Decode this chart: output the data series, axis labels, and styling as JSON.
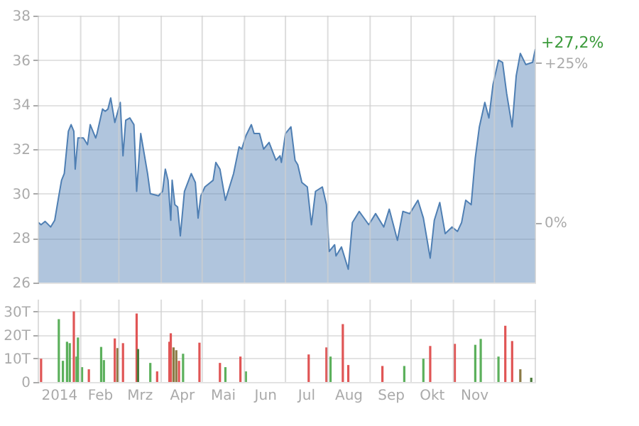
{
  "chart_data": [
    {
      "type": "area",
      "x": [
        "2014-01-01",
        "2014-01-03",
        "2014-01-06",
        "2014-01-10",
        "2014-01-13",
        "2014-01-16",
        "2014-01-18",
        "2014-01-20",
        "2014-01-23",
        "2014-01-25",
        "2014-01-27",
        "2014-01-28",
        "2014-01-30",
        "2014-02-03",
        "2014-02-06",
        "2014-02-08",
        "2014-02-12",
        "2014-02-13",
        "2014-02-17",
        "2014-02-19",
        "2014-02-21",
        "2014-02-23",
        "2014-02-26",
        "2014-03-02",
        "2014-03-04",
        "2014-03-06",
        "2014-03-09",
        "2014-03-12",
        "2014-03-14",
        "2014-03-17",
        "2014-03-22",
        "2014-03-24",
        "2014-03-30",
        "2014-04-02",
        "2014-04-04",
        "2014-04-06",
        "2014-04-08",
        "2014-04-09",
        "2014-04-11",
        "2014-04-13",
        "2014-04-15",
        "2014-04-18",
        "2014-04-23",
        "2014-04-26",
        "2014-04-28",
        "2014-04-30",
        "2014-05-03",
        "2014-05-09",
        "2014-05-11",
        "2014-05-14",
        "2014-05-18",
        "2014-05-21",
        "2014-05-24",
        "2014-05-28",
        "2014-05-30",
        "2014-06-02",
        "2014-06-06",
        "2014-06-08",
        "2014-06-12",
        "2014-06-15",
        "2014-06-19",
        "2014-06-24",
        "2014-06-27",
        "2014-06-28",
        "2014-07-01",
        "2014-07-05",
        "2014-07-08",
        "2014-07-10",
        "2014-07-13",
        "2014-07-17",
        "2014-07-20",
        "2014-07-23",
        "2014-07-28",
        "2014-07-31",
        "2014-08-02",
        "2014-08-06",
        "2014-08-07",
        "2014-08-11",
        "2014-08-16",
        "2014-08-19",
        "2014-08-24",
        "2014-08-31",
        "2014-09-05",
        "2014-09-11",
        "2014-09-15",
        "2014-09-21",
        "2014-09-25",
        "2014-09-30",
        "2014-10-06",
        "2014-10-10",
        "2014-10-15",
        "2014-10-18",
        "2014-10-22",
        "2014-10-26",
        "2014-10-31",
        "2014-11-04",
        "2014-11-07",
        "2014-11-10",
        "2014-11-14",
        "2014-11-17",
        "2014-11-20",
        "2014-11-24",
        "2014-11-27",
        "2014-11-30",
        "2014-12-04",
        "2014-12-07",
        "2014-12-10",
        "2014-12-14",
        "2014-12-17",
        "2014-12-20",
        "2014-12-24",
        "2014-12-29",
        "2014-12-31"
      ],
      "series": [
        {
          "color": "#4f7fb3",
          "values": [
            28.7,
            28.6,
            28.75,
            28.5,
            28.8,
            29.9,
            30.6,
            30.9,
            32.8,
            33.1,
            32.8,
            31.1,
            32.5,
            32.5,
            32.2,
            33.1,
            32.5,
            32.7,
            33.8,
            33.7,
            33.8,
            34.3,
            33.2,
            34.1,
            31.7,
            33.3,
            33.4,
            33.1,
            30.1,
            32.7,
            30.9,
            30.0,
            29.9,
            30.1,
            31.1,
            30.6,
            28.8,
            30.6,
            29.5,
            29.4,
            28.1,
            30.1,
            30.9,
            30.5,
            28.9,
            29.9,
            30.3,
            30.6,
            31.4,
            31.1,
            29.7,
            30.3,
            30.9,
            32.1,
            32.0,
            32.6,
            33.1,
            32.7,
            32.7,
            32.0,
            32.3,
            31.5,
            31.7,
            31.4,
            32.7,
            33.0,
            31.5,
            31.3,
            30.5,
            30.3,
            28.6,
            30.1,
            30.3,
            29.5,
            27.4,
            27.7,
            27.2,
            27.6,
            26.6,
            28.7,
            29.2,
            28.6,
            29.1,
            28.5,
            29.3,
            27.9,
            29.2,
            29.1,
            29.7,
            28.9,
            27.1,
            28.8,
            29.6,
            28.2,
            28.5,
            28.3,
            28.7,
            29.7,
            29.5,
            31.6,
            33.0,
            34.1,
            33.4,
            34.9,
            36.0,
            35.9,
            34.5,
            33.0,
            35.3,
            36.3,
            35.8,
            35.9,
            36.5
          ]
        }
      ],
      "xlim": [
        "2014-01-01",
        "2014-12-31"
      ],
      "xticks": [
        {
          "value": "2014-01-01",
          "label": null
        },
        {
          "value": "2014-02-01",
          "label": null
        },
        {
          "value": "2014-03-01",
          "label": null
        },
        {
          "value": "2014-04-01",
          "label": null
        },
        {
          "value": "2014-05-01",
          "label": null
        },
        {
          "value": "2014-06-01",
          "label": null
        },
        {
          "value": "2014-07-01",
          "label": null
        },
        {
          "value": "2014-08-01",
          "label": null
        },
        {
          "value": "2014-09-01",
          "label": null
        },
        {
          "value": "2014-10-01",
          "label": null
        },
        {
          "value": "2014-11-01",
          "label": null
        },
        {
          "value": "2014-12-01",
          "label": null
        },
        {
          "value": "2014-12-31",
          "label": null
        }
      ],
      "ylim": [
        26,
        38
      ],
      "yticks": [
        26,
        28,
        30,
        32,
        34,
        36,
        38
      ],
      "y2lim": [
        -9.4,
        32.4
      ],
      "y2ticks": [
        {
          "value": 0,
          "label": "0%"
        },
        {
          "value": 25,
          "label": "+25%"
        }
      ],
      "annotations": [
        {
          "text": "+27,2%",
          "x": "2014-12-31",
          "y": 36.5
        }
      ],
      "grid": true,
      "tick_labels": "y"
    },
    {
      "type": "bar",
      "x": [
        "2014-01-03",
        "2014-01-16",
        "2014-01-19",
        "2014-01-22",
        "2014-01-24",
        "2014-01-27",
        "2014-01-29",
        "2014-01-30",
        "2014-02-02",
        "2014-02-07",
        "2014-02-16",
        "2014-02-18",
        "2014-02-26",
        "2014-02-28",
        "2014-03-04",
        "2014-03-14",
        "2014-03-15",
        "2014-03-24",
        "2014-03-29",
        "2014-04-07",
        "2014-04-08",
        "2014-04-10",
        "2014-04-12",
        "2014-04-14",
        "2014-04-17",
        "2014-04-29",
        "2014-05-14",
        "2014-05-18",
        "2014-05-29",
        "2014-06-02",
        "2014-07-18",
        "2014-07-31",
        "2014-08-03",
        "2014-08-12",
        "2014-08-16",
        "2014-09-10",
        "2014-09-26",
        "2014-10-10",
        "2014-10-15",
        "2014-11-02",
        "2014-11-17",
        "2014-11-21",
        "2014-12-04",
        "2014-12-09",
        "2014-12-14",
        "2014-12-20",
        "2014-12-28"
      ],
      "values": [
        9.9,
        26.7,
        9.0,
        17.1,
        16.5,
        30,
        10.8,
        18.9,
        6.3,
        5.4,
        14.9,
        9.3,
        18.5,
        14.4,
        16.5,
        29.1,
        14.0,
        8.1,
        4.5,
        17.1,
        20.7,
        14.7,
        13.5,
        9.0,
        12.0,
        16.7,
        8.1,
        6.3,
        10.8,
        4.5,
        11.7,
        14.7,
        10.8,
        24.6,
        7.2,
        6.8,
        6.8,
        9.9,
        15.3,
        16.2,
        15.8,
        18.3,
        10.8,
        23.9,
        17.4,
        5.4,
        1.8
      ],
      "colors": [
        "#e05555",
        "#5cb05c",
        "#5cb05c",
        "#5cb05c",
        "#5cb05c",
        "#e05555",
        "#5cb05c",
        "#5cb05c",
        "#5cb05c",
        "#e05555",
        "#5cb05c",
        "#5cb05c",
        "#e05555",
        "#8a7a45",
        "#e05555",
        "#e05555",
        "#4a7a3a",
        "#5cb05c",
        "#e05555",
        "#e05555",
        "#e05555",
        "#8a7a45",
        "#8a7a45",
        "#e05555",
        "#5cb05c",
        "#e05555",
        "#e05555",
        "#5cb05c",
        "#e05555",
        "#5cb05c",
        "#e05555",
        "#e05555",
        "#5cb05c",
        "#e05555",
        "#e05555",
        "#e05555",
        "#5cb05c",
        "#5cb05c",
        "#e05555",
        "#e05555",
        "#5cb05c",
        "#5cb05c",
        "#5cb05c",
        "#e05555",
        "#e05555",
        "#8a7a45",
        "#4a7a3a"
      ],
      "xlim": [
        "2014-01-01",
        "2014-12-31"
      ],
      "xticks": [
        {
          "value": "2014-01-01",
          "label": null
        },
        {
          "value": "2014-01-16",
          "label": "2014"
        },
        {
          "value": "2014-02-01",
          "label": null
        },
        {
          "value": "2014-02-15",
          "label": "Feb"
        },
        {
          "value": "2014-03-01",
          "label": null
        },
        {
          "value": "2014-03-16",
          "label": "Mrz"
        },
        {
          "value": "2014-04-01",
          "label": null
        },
        {
          "value": "2014-04-16",
          "label": "Apr"
        },
        {
          "value": "2014-05-01",
          "label": null
        },
        {
          "value": "2014-05-16",
          "label": "Mai"
        },
        {
          "value": "2014-06-01",
          "label": null
        },
        {
          "value": "2014-06-16",
          "label": "Jun"
        },
        {
          "value": "2014-07-01",
          "label": null
        },
        {
          "value": "2014-07-16",
          "label": "Jul"
        },
        {
          "value": "2014-08-01",
          "label": null
        },
        {
          "value": "2014-08-16",
          "label": "Aug"
        },
        {
          "value": "2014-09-01",
          "label": null
        },
        {
          "value": "2014-09-16",
          "label": "Sep"
        },
        {
          "value": "2014-10-01",
          "label": null
        },
        {
          "value": "2014-10-16",
          "label": "Okt"
        },
        {
          "value": "2014-11-01",
          "label": null
        },
        {
          "value": "2014-11-16",
          "label": "Nov"
        },
        {
          "value": "2014-12-01",
          "label": null
        },
        {
          "value": "2014-12-31",
          "label": null
        }
      ],
      "ylim": [
        0,
        35
      ],
      "yticks": [
        0,
        {
          "value": 10,
          "label": "10T"
        },
        {
          "value": 20,
          "label": "20T"
        },
        {
          "value": 30,
          "label": "30T"
        }
      ],
      "grid": true
    }
  ]
}
